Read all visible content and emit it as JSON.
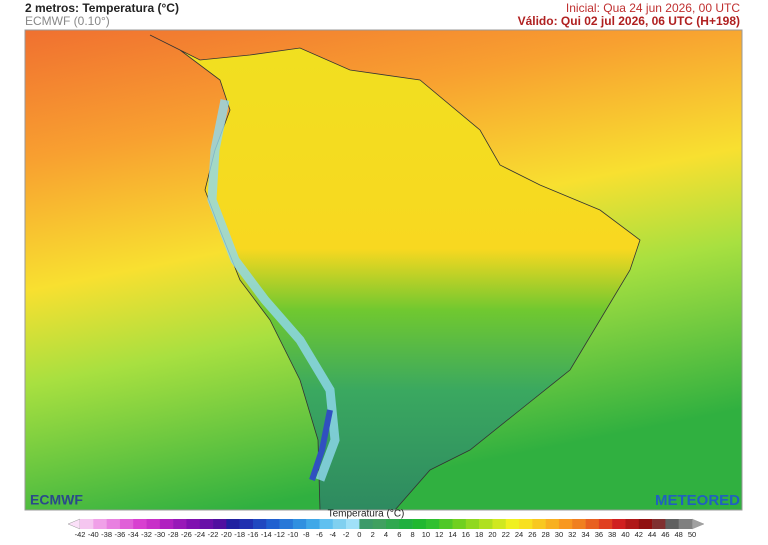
{
  "header": {
    "title": "2 metros: Temperatura (°C)",
    "model": "ECMWF (0.10°)",
    "initial": "Inicial: Qua 24 jun 2026, 00 UTC",
    "valid": "Válido: Qui 02 jul 2026, 06 UTC (H+198)"
  },
  "logos": {
    "left": "ECMWF",
    "right": "METEORED"
  },
  "colorbar": {
    "title": "Temperatura (°C)",
    "ticks": [
      -42,
      -40,
      -38,
      -36,
      -34,
      -32,
      -30,
      -28,
      -26,
      -24,
      -22,
      -20,
      -18,
      -16,
      -14,
      -12,
      -10,
      -8,
      -6,
      -4,
      -2,
      0,
      2,
      4,
      6,
      8,
      10,
      12,
      14,
      16,
      18,
      20,
      22,
      24,
      26,
      28,
      30,
      32,
      34,
      36,
      38,
      40,
      42,
      44,
      46,
      48,
      50
    ],
    "colors": [
      "#f5c6f0",
      "#f0a0e8",
      "#e880e0",
      "#e060d8",
      "#d840d0",
      "#c830c8",
      "#b020c0",
      "#9818b8",
      "#8010b0",
      "#6810a8",
      "#5010a0",
      "#2020a0",
      "#2030b0",
      "#2048c0",
      "#2060d0",
      "#2878d8",
      "#3090e0",
      "#40a8e8",
      "#60c0f0",
      "#80d0f0",
      "#a0e0f8",
      "#3c9a6a",
      "#40a060",
      "#30a850",
      "#20b040",
      "#20b830",
      "#30c030",
      "#50c828",
      "#70d020",
      "#90d820",
      "#b0e020",
      "#d0e820",
      "#f0f020",
      "#f8e020",
      "#f8c820",
      "#f8b020",
      "#f89820",
      "#f08020",
      "#e86020",
      "#e04020",
      "#d02020",
      "#b01818",
      "#901010",
      "#803030",
      "#606060",
      "#808080"
    ]
  }
}
